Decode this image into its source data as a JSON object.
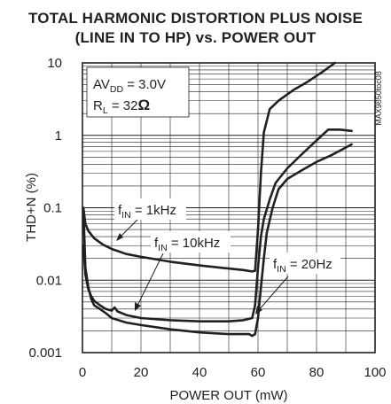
{
  "chart_data": {
    "type": "line",
    "title_lines": [
      "TOTAL HARMONIC DISTORTION PLUS NOISE",
      "(LINE IN TO HP) vs. POWER OUT"
    ],
    "xlabel": "POWER OUT (mW)",
    "ylabel": "THD+N (%)",
    "xlim": [
      0,
      100
    ],
    "ylim": [
      0.001,
      10
    ],
    "yscale": "log",
    "x_ticks": [
      "0",
      "20",
      "40",
      "60",
      "80",
      "100"
    ],
    "y_ticks": [
      "0.001",
      "0.01",
      "0.1",
      "1",
      "10"
    ],
    "grid": true,
    "conditions": [
      "AVDD = 3.0V",
      "RL = 32Ω"
    ],
    "watermark": "MAX9850toc08",
    "series": [
      {
        "name": "fIN = 1kHz",
        "points": [
          [
            0.3,
            0.1
          ],
          [
            1,
            0.06
          ],
          [
            2,
            0.048
          ],
          [
            4,
            0.038
          ],
          [
            7,
            0.031
          ],
          [
            10,
            0.027
          ],
          [
            15,
            0.023
          ],
          [
            20,
            0.021
          ],
          [
            30,
            0.018
          ],
          [
            40,
            0.016
          ],
          [
            50,
            0.0145
          ],
          [
            55,
            0.0138
          ],
          [
            58,
            0.0132
          ],
          [
            59,
            0.0135
          ],
          [
            60,
            0.05
          ],
          [
            61,
            0.3
          ],
          [
            62,
            1.1
          ],
          [
            64,
            2.3
          ],
          [
            67,
            3.0
          ],
          [
            72,
            4.2
          ],
          [
            77,
            5.5
          ],
          [
            82,
            7.5
          ],
          [
            87,
            10.5
          ]
        ]
      },
      {
        "name": "fIN = 10kHz",
        "points": [
          [
            0.3,
            0.03
          ],
          [
            1,
            0.012
          ],
          [
            2,
            0.0075
          ],
          [
            3,
            0.006
          ],
          [
            4,
            0.0052
          ],
          [
            6,
            0.0045
          ],
          [
            8,
            0.004
          ],
          [
            10,
            0.0038
          ],
          [
            11,
            0.0042
          ],
          [
            12,
            0.0037
          ],
          [
            15,
            0.0033
          ],
          [
            20,
            0.003
          ],
          [
            30,
            0.0028
          ],
          [
            40,
            0.0027
          ],
          [
            50,
            0.0027
          ],
          [
            55,
            0.0028
          ],
          [
            58,
            0.003
          ],
          [
            59,
            0.0045
          ],
          [
            60,
            0.015
          ],
          [
            61,
            0.04
          ],
          [
            62,
            0.07
          ],
          [
            64,
            0.13
          ],
          [
            66,
            0.22
          ],
          [
            70,
            0.35
          ],
          [
            75,
            0.55
          ],
          [
            80,
            0.85
          ],
          [
            84,
            1.2
          ],
          [
            88,
            1.2
          ],
          [
            92,
            1.15
          ]
        ]
      },
      {
        "name": "fIN = 20Hz",
        "points": [
          [
            0.3,
            0.1
          ],
          [
            1,
            0.015
          ],
          [
            2,
            0.008
          ],
          [
            3,
            0.0055
          ],
          [
            4,
            0.0045
          ],
          [
            6,
            0.004
          ],
          [
            8,
            0.0035
          ],
          [
            10,
            0.003
          ],
          [
            15,
            0.0026
          ],
          [
            20,
            0.0024
          ],
          [
            30,
            0.0021
          ],
          [
            40,
            0.0019
          ],
          [
            50,
            0.0018
          ],
          [
            57,
            0.0018
          ],
          [
            58,
            0.0017
          ],
          [
            59,
            0.0018
          ],
          [
            60,
            0.003
          ],
          [
            61,
            0.008
          ],
          [
            62,
            0.02
          ],
          [
            63,
            0.045
          ],
          [
            65,
            0.1
          ],
          [
            67,
            0.18
          ],
          [
            70,
            0.25
          ],
          [
            75,
            0.33
          ],
          [
            80,
            0.43
          ],
          [
            85,
            0.53
          ],
          [
            92,
            0.75
          ]
        ]
      }
    ]
  }
}
